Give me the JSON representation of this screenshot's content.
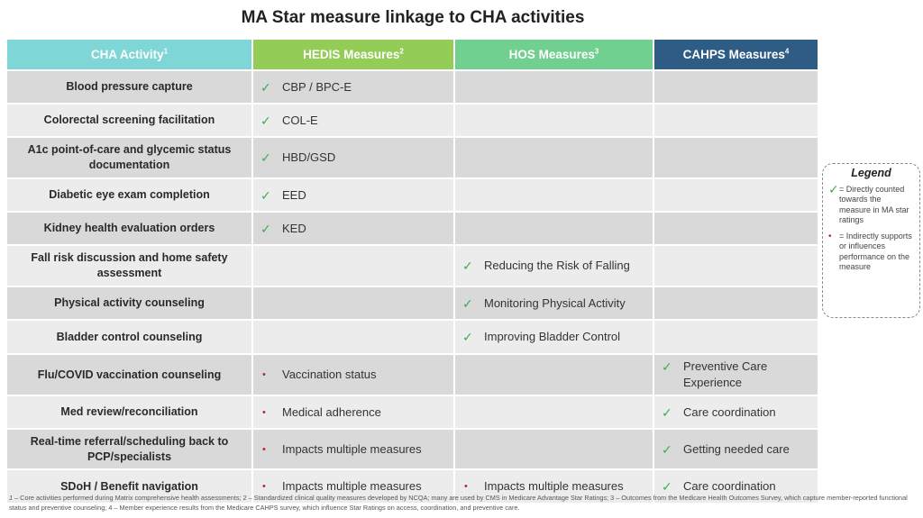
{
  "title": "MA Star measure linkage to CHA activities",
  "colors": {
    "header_cha": "#7fd6d6",
    "header_hedis": "#94cc58",
    "header_hos": "#71cf8f",
    "header_cahps": "#2e5c84",
    "row_dark": "#d9d9d9",
    "row_light": "#ececec",
    "check": "#3dab55",
    "dot": "#b52a2a"
  },
  "headers": [
    {
      "label": "CHA Activity",
      "sup": "1"
    },
    {
      "label": "HEDIS Measures",
      "sup": "2"
    },
    {
      "label": "HOS Measures",
      "sup": "3"
    },
    {
      "label": "CAHPS Measures",
      "sup": "4"
    }
  ],
  "rows": [
    {
      "activity": "Blood pressure capture",
      "hedis": {
        "mark": "check",
        "text": "CBP / BPC-E"
      },
      "hos": null,
      "cahps": null
    },
    {
      "activity": "Colorectal screening facilitation",
      "hedis": {
        "mark": "check",
        "text": "COL-E"
      },
      "hos": null,
      "cahps": null
    },
    {
      "activity": "A1c point-of-care and glycemic status documentation",
      "hedis": {
        "mark": "check",
        "text": "HBD/GSD"
      },
      "hos": null,
      "cahps": null
    },
    {
      "activity": "Diabetic eye exam completion",
      "hedis": {
        "mark": "check",
        "text": "EED"
      },
      "hos": null,
      "cahps": null
    },
    {
      "activity": "Kidney health evaluation orders",
      "hedis": {
        "mark": "check",
        "text": "KED"
      },
      "hos": null,
      "cahps": null
    },
    {
      "activity": "Fall risk discussion and home safety assessment",
      "hedis": null,
      "hos": {
        "mark": "check",
        "text": "Reducing the Risk of Falling"
      },
      "cahps": null
    },
    {
      "activity": "Physical activity counseling",
      "hedis": null,
      "hos": {
        "mark": "check",
        "text": "Monitoring Physical Activity"
      },
      "cahps": null
    },
    {
      "activity": "Bladder control counseling",
      "hedis": null,
      "hos": {
        "mark": "check",
        "text": "Improving Bladder Control"
      },
      "cahps": null
    },
    {
      "activity": "Flu/COVID vaccination counseling",
      "hedis": {
        "mark": "dot",
        "text": "Vaccination status"
      },
      "hos": null,
      "cahps": {
        "mark": "check",
        "text": "Preventive Care Experience"
      }
    },
    {
      "activity": "Med review/reconciliation",
      "hedis": {
        "mark": "dot",
        "text": "Medical adherence"
      },
      "hos": null,
      "cahps": {
        "mark": "check",
        "text": "Care coordination"
      }
    },
    {
      "activity": "Real-time referral/scheduling back to PCP/specialists",
      "hedis": {
        "mark": "dot",
        "text": "Impacts multiple measures"
      },
      "hos": null,
      "cahps": {
        "mark": "check",
        "text": "Getting needed care"
      }
    },
    {
      "activity": "SDoH / Benefit navigation",
      "hedis": {
        "mark": "dot",
        "text": "Impacts multiple measures"
      },
      "hos": {
        "mark": "dot",
        "text": "Impacts multiple measures"
      },
      "cahps": {
        "mark": "check",
        "text": "Care coordination"
      }
    }
  ],
  "legend": {
    "title": "Legend",
    "items": [
      {
        "icon": "check-icon",
        "text": "= Directly counted towards the measure in MA star ratings"
      },
      {
        "icon": "dot-icon",
        "text": "= Indirectly supports or influences performance on the measure"
      }
    ]
  },
  "footnote": {
    "marker": "1",
    "text": " – Core activities performed during Matrix comprehensive health assessments; 2 – Standardized clinical quality measures developed by NCQA; many are used by CMS in Medicare Advantage Star Ratings; 3 – Outcomes from the Medicare Health Outcomes Survey, which capture member-reported functional status and preventive counseling; 4 – Member experience results from the Medicare CAHPS survey, which influence Star Ratings on access, coordination, and preventive care."
  }
}
